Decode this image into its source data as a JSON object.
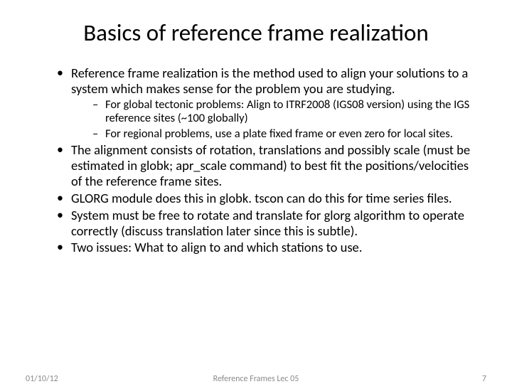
{
  "title": "Basics of reference frame realization",
  "bullets": {
    "b1": "Reference frame realization is the method used to align your solutions to a system which makes sense for the problem you are studying.",
    "b1a": "For global tectonic problems: Align to ITRF2008 (IGS08 version) using the IGS reference sites (~100 globally)",
    "b1b": "For regional problems, use a plate fixed frame or even zero for local sites.",
    "b2": "The alignment consists of rotation, translations and possibly scale (must be estimated in globk; apr_scale command) to best fit the positions/velocities of the reference frame sites.",
    "b3": "GLORG module does this in globk.  tscon can do this for time series files.",
    "b4": "System must be free to rotate and translate for glorg algorithm to operate correctly (discuss translation later since this is subtle).",
    "b5": "Two issues: What to align to and which stations to use."
  },
  "footer": {
    "date": "01/10/12",
    "center": "Reference Frames Lec 05",
    "page": "7"
  }
}
